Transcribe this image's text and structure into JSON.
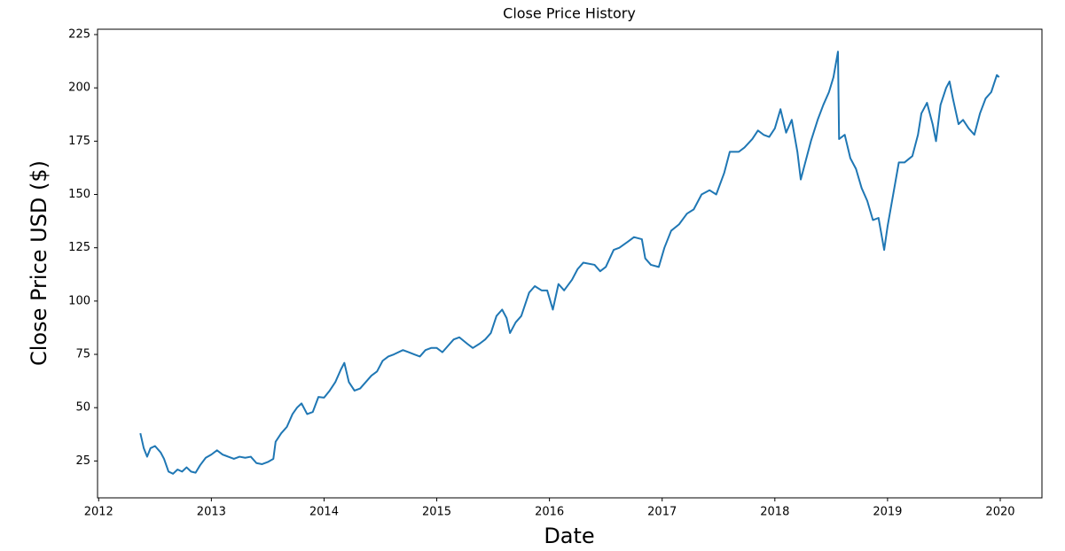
{
  "chart_data": {
    "type": "line",
    "title": "Close Price History",
    "x_label": "Date",
    "y_label": "Close Price USD ($)",
    "x": [
      2012.37,
      2012.4,
      2012.43,
      2012.46,
      2012.5,
      2012.55,
      2012.58,
      2012.62,
      2012.66,
      2012.7,
      2012.74,
      2012.78,
      2012.82,
      2012.86,
      2012.9,
      2012.95,
      2013.0,
      2013.05,
      2013.1,
      2013.15,
      2013.2,
      2013.25,
      2013.3,
      2013.35,
      2013.4,
      2013.45,
      2013.5,
      2013.55,
      2013.57,
      2013.62,
      2013.67,
      2013.72,
      2013.76,
      2013.8,
      2013.85,
      2013.9,
      2013.95,
      2014.0,
      2014.05,
      2014.1,
      2014.15,
      2014.18,
      2014.22,
      2014.27,
      2014.32,
      2014.37,
      2014.42,
      2014.47,
      2014.52,
      2014.57,
      2014.62,
      2014.7,
      2014.75,
      2014.8,
      2014.85,
      2014.9,
      2014.95,
      2015.0,
      2015.05,
      2015.1,
      2015.15,
      2015.2,
      2015.27,
      2015.32,
      2015.38,
      2015.43,
      2015.48,
      2015.53,
      2015.58,
      2015.62,
      2015.65,
      2015.7,
      2015.75,
      2015.82,
      2015.87,
      2015.93,
      2015.98,
      2016.03,
      2016.08,
      2016.13,
      2016.2,
      2016.25,
      2016.3,
      2016.4,
      2016.45,
      2016.5,
      2016.57,
      2016.62,
      2016.7,
      2016.75,
      2016.82,
      2016.85,
      2016.9,
      2016.97,
      2017.02,
      2017.08,
      2017.15,
      2017.22,
      2017.28,
      2017.35,
      2017.42,
      2017.48,
      2017.55,
      2017.6,
      2017.68,
      2017.73,
      2017.8,
      2017.85,
      2017.9,
      2017.95,
      2018.0,
      2018.05,
      2018.1,
      2018.15,
      2018.2,
      2018.23,
      2018.27,
      2018.32,
      2018.38,
      2018.43,
      2018.48,
      2018.52,
      2018.56,
      2018.57,
      2018.62,
      2018.67,
      2018.72,
      2018.77,
      2018.82,
      2018.87,
      2018.92,
      2018.97,
      2019.0,
      2019.05,
      2019.1,
      2019.15,
      2019.22,
      2019.27,
      2019.3,
      2019.35,
      2019.4,
      2019.43,
      2019.47,
      2019.52,
      2019.55,
      2019.58,
      2019.63,
      2019.67,
      2019.72,
      2019.77,
      2019.82,
      2019.87,
      2019.92,
      2019.97,
      2019.99
    ],
    "values": [
      38,
      31,
      27,
      31,
      32,
      29,
      26,
      20,
      19,
      21,
      20,
      22,
      20,
      19.5,
      23,
      26.5,
      28,
      30,
      28,
      27,
      26,
      27,
      26.5,
      27,
      24,
      23.5,
      24.5,
      26,
      34,
      38,
      41,
      47,
      50,
      52,
      47,
      48,
      55,
      54.7,
      58,
      62,
      68,
      71,
      62,
      58,
      59,
      62,
      65,
      67,
      72,
      74,
      75,
      77,
      76,
      75,
      74,
      77,
      78,
      78,
      76,
      79,
      82,
      83,
      80,
      78,
      80,
      82,
      85,
      93,
      96,
      92,
      85,
      90,
      93,
      104,
      107,
      105,
      105,
      96,
      108,
      105,
      110,
      115,
      118,
      117,
      114,
      116,
      124,
      125,
      128,
      130,
      129,
      120,
      117,
      116,
      125,
      133,
      136,
      141,
      143,
      150,
      152,
      150,
      160,
      170,
      170,
      172,
      176,
      180,
      178,
      177,
      181,
      190,
      179,
      185,
      170,
      157,
      165,
      175,
      185,
      192,
      198,
      205,
      217,
      176,
      178,
      167,
      162,
      153,
      147,
      138,
      139,
      124,
      135,
      150,
      165,
      165,
      168,
      178,
      188,
      193,
      183,
      175,
      192,
      200,
      203,
      195,
      183,
      185,
      181,
      178,
      188,
      195,
      198,
      206,
      205
    ],
    "color": "#1f77b4",
    "xlim": [
      2011.99,
      2020.37
    ],
    "xticks": [
      2012,
      2013,
      2014,
      2015,
      2016,
      2017,
      2018,
      2019,
      2020
    ],
    "ylim": [
      7.7,
      227.5
    ],
    "yticks": [
      25,
      50,
      75,
      100,
      125,
      150,
      175,
      200,
      225
    ]
  }
}
